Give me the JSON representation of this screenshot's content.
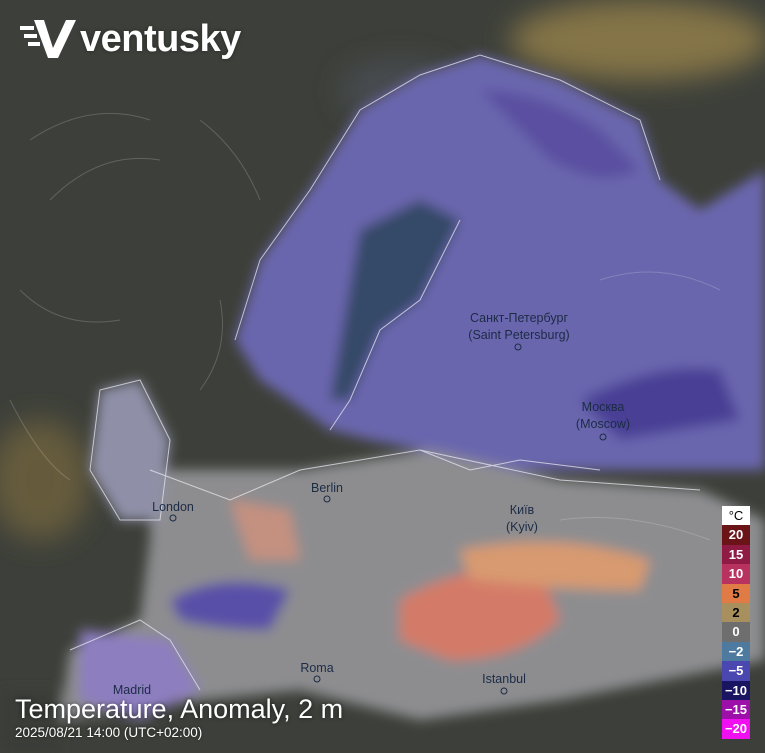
{
  "app": {
    "logo_text": "ventusky"
  },
  "layer": {
    "title": "Temperature, Anomaly, 2 m",
    "datetime": "2025/08/21 14:00 (UTC+02:00)"
  },
  "cities": [
    {
      "name": "Санкт-Петербург",
      "alt": "(Saint Petersburg)"
    },
    {
      "name": "Москва",
      "alt": "(Moscow)"
    },
    {
      "name": "Berlin"
    },
    {
      "name": "London"
    },
    {
      "name": "Київ",
      "alt": "(Kyiv)"
    },
    {
      "name": "Roma"
    },
    {
      "name": "Madrid"
    },
    {
      "name": "Istanbul"
    }
  ],
  "legend": {
    "unit": "°C",
    "items": [
      {
        "label": "20",
        "color": "#6b1418",
        "text": "#ffffff"
      },
      {
        "label": "15",
        "color": "#8f1b45",
        "text": "#ffffff"
      },
      {
        "label": "10",
        "color": "#b8325f",
        "text": "#ffffff"
      },
      {
        "label": "5",
        "color": "#e07b45",
        "text": "#000000"
      },
      {
        "label": "2",
        "color": "#a8905e",
        "text": "#000000"
      },
      {
        "label": "0",
        "color": "#6e6e6e",
        "text": "#ffffff"
      },
      {
        "label": "−2",
        "color": "#4e7aa0",
        "text": "#ffffff"
      },
      {
        "label": "−5",
        "color": "#4a48b0",
        "text": "#ffffff"
      },
      {
        "label": "−10",
        "color": "#1a1560",
        "text": "#ffffff"
      },
      {
        "label": "−15",
        "color": "#9c0fa8",
        "text": "#ffffff"
      },
      {
        "label": "−20",
        "color": "#f00ff0",
        "text": "#ffffff"
      }
    ]
  }
}
